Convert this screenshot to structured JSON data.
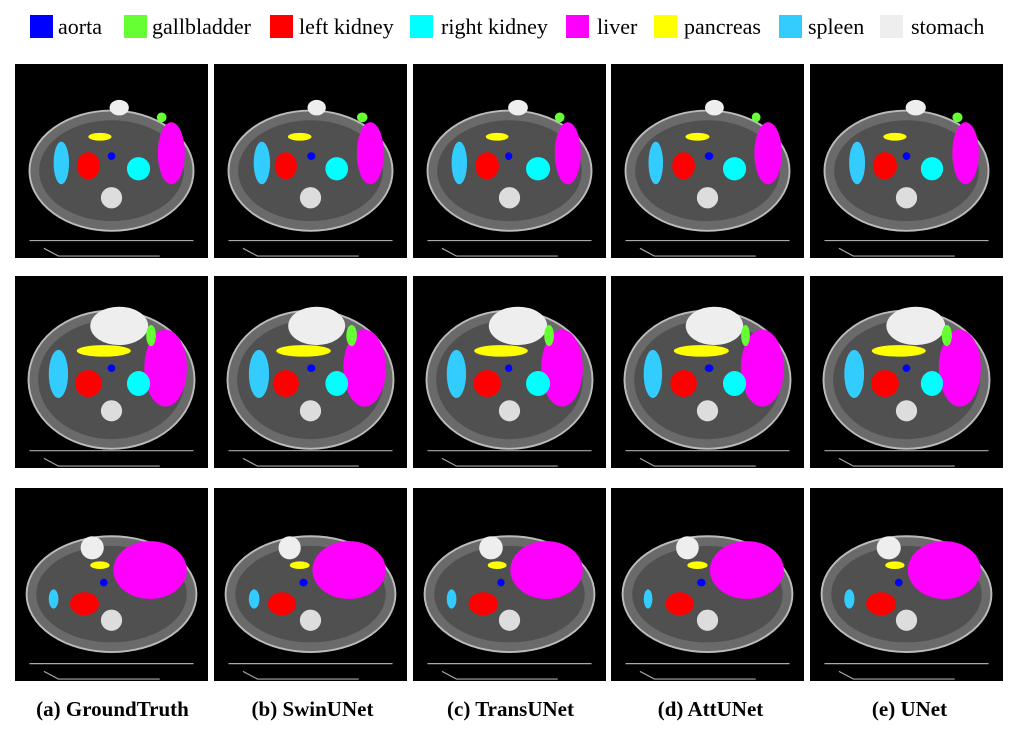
{
  "legend": [
    {
      "label": "aorta",
      "color": "#0000ff"
    },
    {
      "label": "gallbladder",
      "color": "#66ff33"
    },
    {
      "label": "left kidney",
      "color": "#ff0000"
    },
    {
      "label": "right kidney",
      "color": "#00ffff"
    },
    {
      "label": "liver",
      "color": "#ff00ff"
    },
    {
      "label": "pancreas",
      "color": "#ffff00"
    },
    {
      "label": "spleen",
      "color": "#33ccff"
    },
    {
      "label": "stomach",
      "color": "#eeeeee"
    }
  ],
  "columns": [
    "(a) GroundTruth",
    "(b) SwinUNet",
    "(c) TransUNet",
    "(d) AttUNet",
    "(e) UNet"
  ]
}
